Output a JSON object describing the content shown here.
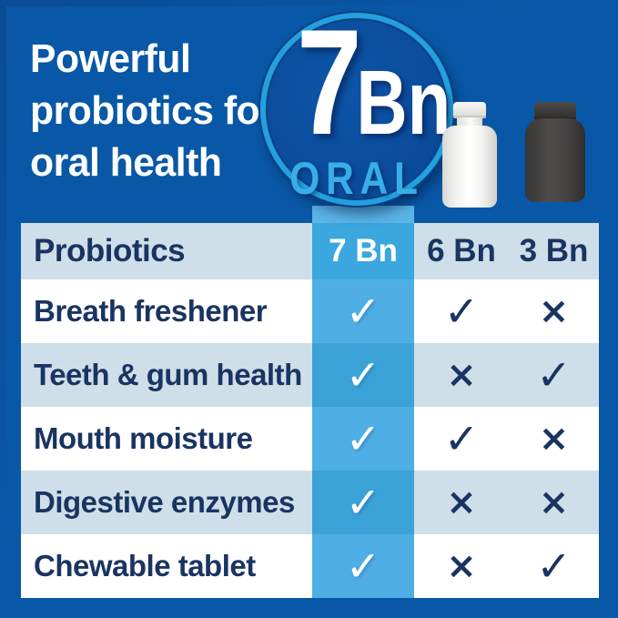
{
  "title": {
    "lines": [
      "Powerful",
      "probiotics for",
      "oral health"
    ]
  },
  "badge": {
    "number": "7",
    "unit": "Bn",
    "label": "ORAL"
  },
  "comparison_table": {
    "header": {
      "row_label": "Probiotics",
      "columns": [
        "7 Bn",
        "6 Bn",
        "3 Bn"
      ]
    },
    "rows": [
      {
        "label": "Breath freshener",
        "values": [
          "check",
          "check",
          "cross"
        ]
      },
      {
        "label": "Teeth & gum health",
        "values": [
          "check",
          "cross",
          "check"
        ]
      },
      {
        "label": "Mouth moisture",
        "values": [
          "check",
          "check",
          "cross"
        ]
      },
      {
        "label": "Digestive enzymes",
        "values": [
          "check",
          "cross",
          "cross"
        ]
      },
      {
        "label": "Chewable tablet",
        "values": [
          "check",
          "cross",
          "check"
        ]
      }
    ],
    "glyphs": {
      "check": "✓",
      "cross": "×"
    }
  },
  "chart_data": {
    "type": "table",
    "title": "Powerful probiotics for oral health",
    "columns": [
      "Probiotics",
      "7 Bn",
      "6 Bn",
      "3 Bn"
    ],
    "rows": [
      [
        "Breath freshener",
        "check",
        "check",
        "cross"
      ],
      [
        "Teeth & gum health",
        "check",
        "cross",
        "check"
      ],
      [
        "Mouth moisture",
        "check",
        "check",
        "cross"
      ],
      [
        "Digestive enzymes",
        "check",
        "cross",
        "cross"
      ],
      [
        "Chewable tablet",
        "check",
        "cross",
        "check"
      ]
    ]
  },
  "colors": {
    "background": "#0958A7",
    "ring": "#23A0DE",
    "oral_text": "#37AEE8",
    "navy_text": "#1A3462",
    "row_light": "#CEDFEA",
    "row_white": "#FFFFFF",
    "header_band": "#3BA7DE",
    "accent_band": "#4FAFE4",
    "accent_band_dark": "#3AA2D7",
    "accent_band_light": "#5BB5E8"
  }
}
